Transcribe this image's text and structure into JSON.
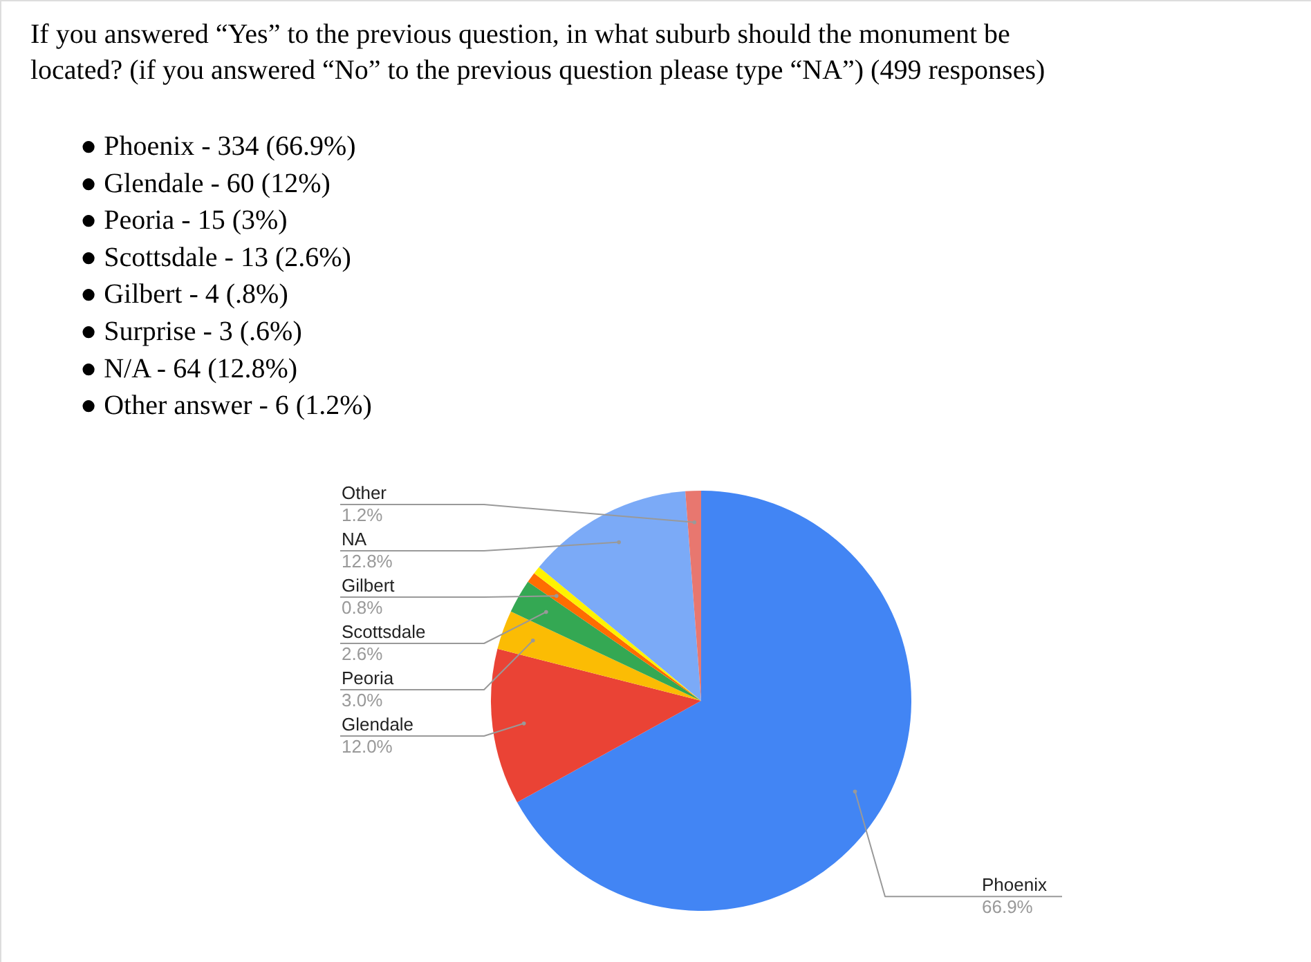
{
  "chart_data": {
    "type": "pie",
    "title": "If you answered “Yes” to the previous question, in what suburb should the monument be located? (if you answered “No” to the previous question please type “NA”) (499 responses)",
    "annotations": [
      "● Phoenix - 334 (66.9%)",
      "● Glendale - 60 (12%)",
      "● Peoria - 15 (3%)",
      "● Scottsdale - 13 (2.6%)",
      "● Gilbert - 4 (.8%)",
      "● Surprise - 3 (.6%)",
      "● N/A - 64 (12.8%)",
      "● Other answer - 6 (1.2%)"
    ],
    "categories": [
      "Phoenix",
      "Glendale",
      "Peoria",
      "Scottsdale",
      "Gilbert",
      null,
      "NA",
      "Other"
    ],
    "values": [
      66.9,
      12.0,
      3.0,
      2.6,
      0.8,
      0.6,
      12.8,
      1.2
    ],
    "colors": [
      "#4285f4",
      "#ea4335",
      "#fbbc04",
      "#34a853",
      "#ff6d01",
      "#fff200",
      "#7baaf7",
      "#e8776f"
    ],
    "value_labels": [
      "66.9%",
      "12.0%",
      "3.0%",
      "2.6%",
      "0.8%",
      null,
      "12.8%",
      "1.2%"
    ]
  }
}
